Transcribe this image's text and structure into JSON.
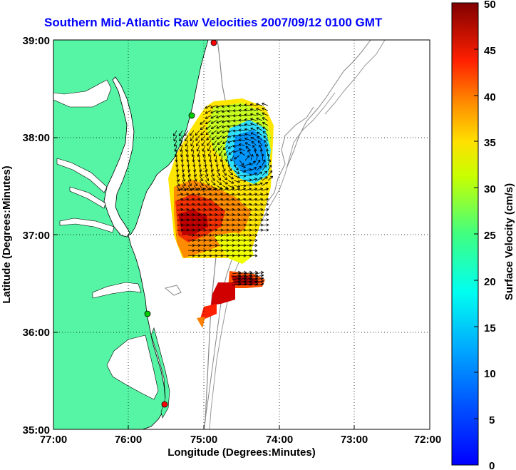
{
  "title": "Southern Mid-Atlantic Raw Velocities 2007/09/12 0100 GMT",
  "map": {
    "xlabel": "Longitude (Degrees:Minutes)",
    "ylabel": "Latitude (Degrees:Minutes)",
    "x_ticks": [
      "77:00",
      "76:00",
      "75:00",
      "74:00",
      "73:00",
      "72:00"
    ],
    "y_ticks": [
      "39:00",
      "38:00",
      "37:00",
      "36:00",
      "35:00"
    ],
    "land_color": "#55f5a5",
    "water_color": "#ffffff"
  },
  "colorbar": {
    "label": "Surface Velocity (cm/s)",
    "ticks": [
      "50",
      "45",
      "40",
      "35",
      "30",
      "25",
      "20",
      "15",
      "10",
      "5",
      "0"
    ],
    "range": [
      0,
      50
    ],
    "colormap": "jet"
  },
  "markers": [
    {
      "name": "station-marker-north",
      "color": "#ff0000"
    },
    {
      "name": "station-marker-delmarva",
      "color": "#00cc00"
    },
    {
      "name": "station-marker-virginia",
      "color": "#00cc00"
    },
    {
      "name": "station-marker-hatteras",
      "color": "#ff0000"
    }
  ]
}
